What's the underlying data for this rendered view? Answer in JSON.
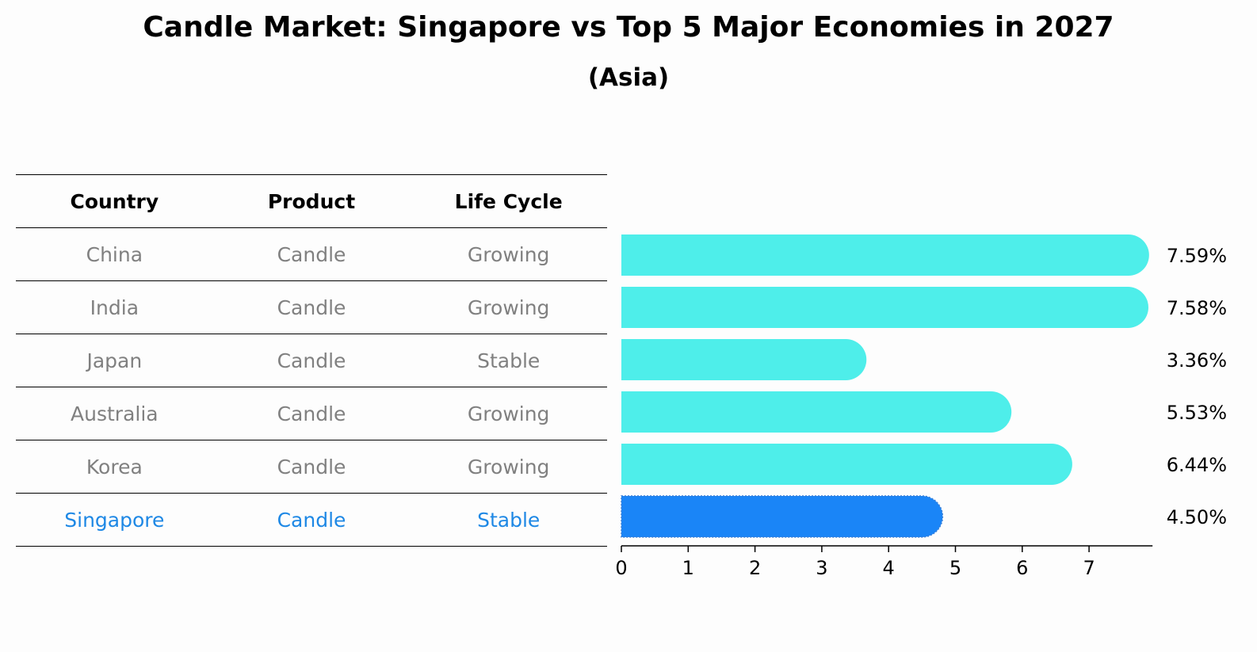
{
  "header": {
    "title": "Candle Market: Singapore vs Top 5 Major Economies in 2027",
    "subtitle": "(Asia)"
  },
  "table": {
    "columns": [
      "Country",
      "Product",
      "Life Cycle"
    ],
    "rows": [
      {
        "country": "China",
        "product": "Candle",
        "life_cycle": "Growing"
      },
      {
        "country": "India",
        "product": "Candle",
        "life_cycle": "Growing"
      },
      {
        "country": "Japan",
        "product": "Candle",
        "life_cycle": "Stable"
      },
      {
        "country": "Australia",
        "product": "Candle",
        "life_cycle": "Growing"
      },
      {
        "country": "Korea",
        "product": "Candle",
        "life_cycle": "Growing"
      },
      {
        "country": "Singapore",
        "product": "Candle",
        "life_cycle": "Stable"
      }
    ]
  },
  "colors": {
    "bar": "#4eeeea",
    "highlight_bar": "#1a85f7",
    "highlight_text": "#1e88e5",
    "row_text": "#808080"
  },
  "chart_data": {
    "type": "bar",
    "orientation": "horizontal",
    "title": "Candle Market: Singapore vs Top 5 Major Economies in 2027",
    "subtitle": "(Asia)",
    "categories": [
      "China",
      "India",
      "Japan",
      "Australia",
      "Korea",
      "Singapore"
    ],
    "values": [
      7.59,
      7.58,
      3.36,
      5.53,
      6.44,
      4.5
    ],
    "value_labels": [
      "7.59%",
      "7.58%",
      "3.36%",
      "5.53%",
      "6.44%",
      "4.50%"
    ],
    "highlight": "Singapore",
    "xticks": [
      0,
      1,
      2,
      3,
      4,
      5,
      6,
      7
    ],
    "xlim": [
      0,
      7.95
    ],
    "grid": false,
    "xlabel": "",
    "ylabel": ""
  }
}
